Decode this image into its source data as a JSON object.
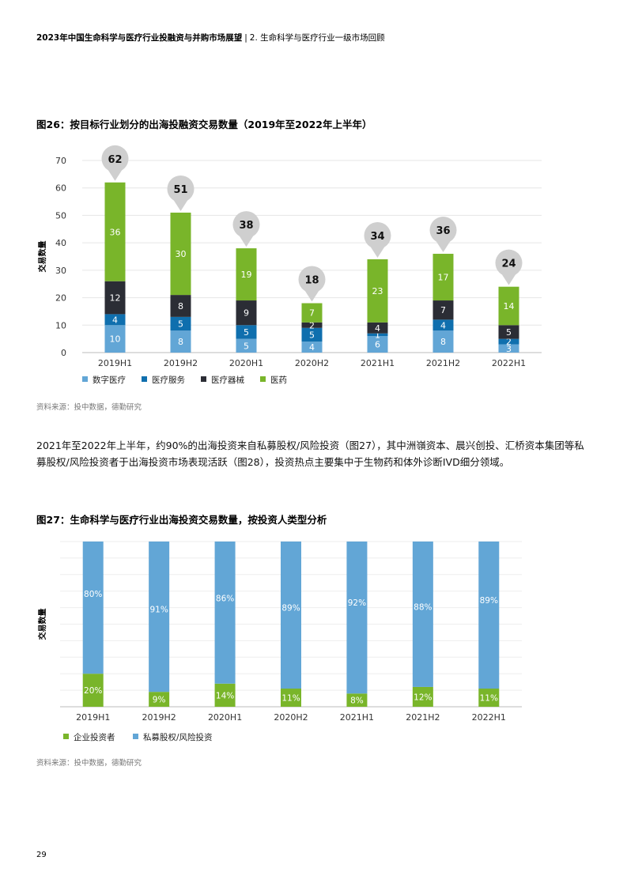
{
  "header": {
    "report_title": "2023年中国生命科学与医疗行业投融资与并购市场展望",
    "separator": "|",
    "section": "2. 生命科学与医疗行业一级市场回顾"
  },
  "figure26": {
    "title": "图26：按目标行业划分的出海投融资交易数量（2019年至2022年上半年）"
  },
  "figure27": {
    "title": "图27：生命科学与医疗行业出海投资交易数量，按投资人类型分析"
  },
  "source1": "资料来源：投中数据，德勤研究",
  "source2": "资料来源：投中数据，德勤研究",
  "paragraph": "2021年至2022年上半年，约90%的出海投资来自私募股权/风险投资（图27），其中洲嶺资本、晨兴创投、汇桥资本集团等私募股权/风险投资者于出海投资市场表现活跃（图28），投资热点主要集中于生物药和体外诊断IVD细分领域。",
  "page_number": "29",
  "colors": {
    "digital": "#62a6d6",
    "service": "#0f6fae",
    "device": "#2b2d35",
    "pharma": "#79b52a",
    "corporate": "#79b52a",
    "pevc": "#62a6d6",
    "bubble": "#cfcfcf"
  },
  "chart_data": [
    {
      "type": "bar",
      "stacked": true,
      "title": "图26：按目标行业划分的出海投融资交易数量（2019年至2022年上半年）",
      "ylabel": "交易数量",
      "xlabel": "",
      "ylim": [
        0,
        70
      ],
      "yticks": [
        0,
        10,
        20,
        30,
        40,
        50,
        60,
        70
      ],
      "grid": true,
      "categories": [
        "2019H1",
        "2019H2",
        "2020H1",
        "2020H2",
        "2021H1",
        "2021H2",
        "2022H1"
      ],
      "series": [
        {
          "name": "数字医疗",
          "color_key": "digital",
          "values": [
            10,
            8,
            5,
            4,
            6,
            8,
            3
          ]
        },
        {
          "name": "医疗服务",
          "color_key": "service",
          "values": [
            4,
            5,
            5,
            5,
            1,
            4,
            2
          ]
        },
        {
          "name": "医疗器械",
          "color_key": "device",
          "values": [
            12,
            8,
            9,
            2,
            4,
            7,
            5
          ]
        },
        {
          "name": "医药",
          "color_key": "pharma",
          "values": [
            36,
            30,
            19,
            7,
            23,
            17,
            14
          ]
        }
      ],
      "totals": [
        62,
        51,
        38,
        18,
        34,
        36,
        24
      ],
      "legend": "bottom"
    },
    {
      "type": "bar",
      "stacked": true,
      "percent": true,
      "title": "图27：生命科学与医疗行业出海投资交易数量，按投资人类型分析",
      "ylabel": "交易数量",
      "xlabel": "",
      "ylim": [
        0,
        100
      ],
      "grid": true,
      "categories": [
        "2019H1",
        "2019H2",
        "2020H1",
        "2020H2",
        "2021H1",
        "2021H2",
        "2022H1"
      ],
      "series": [
        {
          "name": "企业投资者",
          "color_key": "corporate",
          "values": [
            20,
            9,
            14,
            11,
            8,
            12,
            11
          ]
        },
        {
          "name": "私募股权/风险投资",
          "color_key": "pevc",
          "values": [
            80,
            91,
            86,
            89,
            92,
            88,
            89
          ]
        }
      ],
      "legend": "bottom"
    }
  ]
}
